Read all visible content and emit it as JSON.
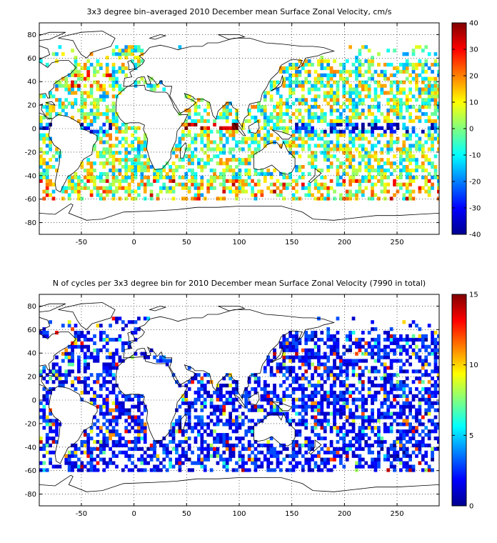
{
  "chart_data": [
    {
      "type": "heatmap",
      "title": "3x3 degree bin–averaged 2010 December mean Surface Zonal Velocity, cm/s",
      "xlabel": "",
      "ylabel": "",
      "xlim": [
        -90,
        290
      ],
      "ylim": [
        -90,
        90
      ],
      "x_ticks": [
        -50,
        0,
        50,
        100,
        150,
        200,
        250
      ],
      "y_ticks": [
        80,
        60,
        40,
        20,
        0,
        -20,
        -40,
        -60,
        -80
      ],
      "grid": true,
      "bin_size_deg": 3,
      "colormap": "jet",
      "colorbar": {
        "min": -40,
        "max": 40,
        "ticks": [
          40,
          30,
          20,
          10,
          0,
          -10,
          -20,
          -30,
          -40
        ]
      },
      "cells": "Gridded ocean velocity bins; dense over ocean basins, strong eastward (red) bands near 45–60S and along 0–5N in Indian Ocean, westward (blue) band along equator in Pacific/Atlantic."
    },
    {
      "type": "heatmap",
      "title": "N of cycles per 3x3 degree bin for 2010 December mean Surface Zonal Velocity (7990 in total)",
      "xlabel": "",
      "ylabel": "",
      "xlim": [
        -90,
        290
      ],
      "ylim": [
        -90,
        90
      ],
      "x_ticks": [
        -50,
        0,
        50,
        100,
        150,
        200,
        250
      ],
      "y_ticks": [
        80,
        60,
        40,
        20,
        0,
        -20,
        -40,
        -60,
        -80
      ],
      "grid": true,
      "bin_size_deg": 3,
      "colormap": "jet",
      "colorbar": {
        "min": 0,
        "max": 15,
        "ticks": [
          15,
          10,
          5,
          0
        ]
      },
      "cells": "Mostly low counts (dark blue) across ocean basins, scattered higher counts (cyan/yellow/red) in North Atlantic and Pacific."
    }
  ],
  "colors": {
    "jet_low": "#00008f",
    "jet_mid": "#00ffff",
    "jet_high": "#800000",
    "land_outline": "#000000",
    "background": "#ffffff"
  }
}
